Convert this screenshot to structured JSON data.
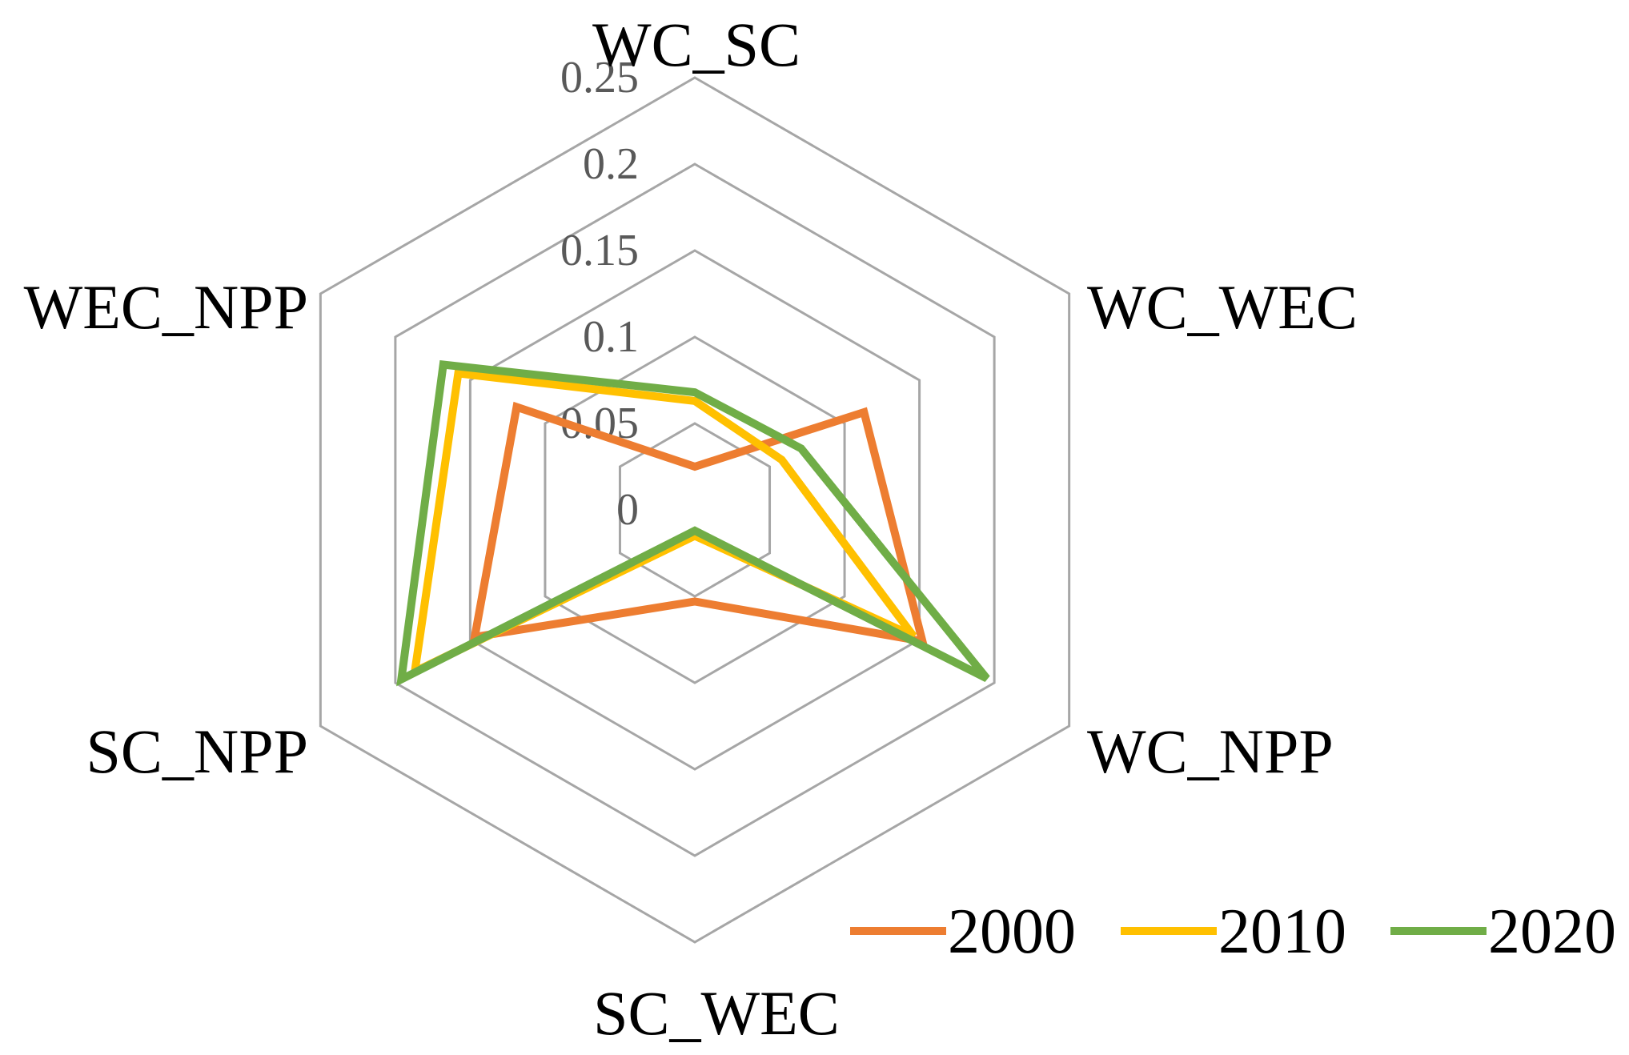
{
  "chart_data": {
    "type": "radar",
    "axes": [
      "WC_SC",
      "WC_WEC",
      "WC_NPP",
      "SC_WEC",
      "SC_NPP",
      "WEC_NPP"
    ],
    "ticks": [
      "0",
      "0.05",
      "0.1",
      "0.15",
      "0.2",
      "0.25"
    ],
    "range": [
      0,
      0.25
    ],
    "grid": true,
    "legend_position": "bottom-right",
    "series": [
      {
        "name": "2000",
        "color": "#ED7D31",
        "values": [
          0.025,
          0.113,
          0.152,
          0.053,
          0.147,
          0.119
        ]
      },
      {
        "name": "2010",
        "color": "#FFC000",
        "values": [
          0.063,
          0.058,
          0.146,
          0.015,
          0.187,
          0.158
        ]
      },
      {
        "name": "2020",
        "color": "#70AD47",
        "values": [
          0.068,
          0.071,
          0.195,
          0.012,
          0.196,
          0.168
        ]
      }
    ]
  }
}
